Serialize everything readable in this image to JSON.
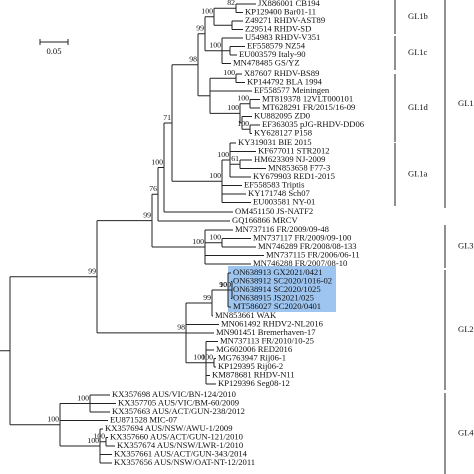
{
  "scale_bar": "0.05",
  "leaves": [
    "JX886001 CB194",
    "KP129400 Bar01-11",
    "Z49271 RHDV-AST89",
    "Z29514 RHDV-SD",
    "U54983 RHDV-V351",
    "EF558579 NZ54",
    "EU003579 Italy-90",
    "MN478485 GS/YZ",
    "X87607 RHDV-BS89",
    "KP144792 BLA 1994",
    "EF558577 Meiningen",
    "MT819378 12VLT000101",
    "MT628291 FR/2015/16-09",
    "KU882095 ZD0",
    "EF363035 pJG-RHDV-DD06",
    "KY628127 P158",
    "KY319031 BIE 2015",
    "KF677011 STR2012",
    "HM623309 NJ-2009",
    "MN853658 F77-3",
    "KY679903 RED1-2015",
    "EF558583 Triptis",
    "KY171748 Sch07",
    "EU003581 NY-01",
    "OM451150 JS-NATF2",
    "GQ166866 MRCV",
    "MN737116 FR/2009/09-48",
    "MN737117 FR/2009/09-100",
    "MN746289 FR/2008/08-133",
    "MN737115 FR/2006/06-11",
    "MN746288 FR/2007/08-10",
    "ON638913 GX2021/0421",
    "ON638912 SC2020/1016-02",
    "ON638914 SC2020/1025",
    "ON638915 JS2021/025",
    "MT586027 SC2020/0401",
    "MN853661 WAK",
    "MN061492 RHDV2-NL2016",
    "MN901451 Bremerhaven-17",
    "MN737113 FR/2010/10-25",
    "MG602006 RED2016",
    "MG763947 Rij06-1",
    "KP129395 Rij06-2",
    "KM878681 RHDV-N11",
    "KP129396 Seg08-12",
    "KX357698 AUS/VIC/BN-124/2010",
    "KX357705 AUS/VIC/BM-60/2009",
    "KX357663 AUS/ACT/GUN-238/2012",
    "EU871528 MIC-07",
    "KX357694 AUS/NSW/AWU-1/2009",
    "KX357660 AUS/ACT/GUN-121/2010",
    "KX357674 AUS/NSW/LWR-1/2010",
    "KX357661 AUS/ACT/GUN-343/2014",
    "KX357656 AUS/NSW/OAT-NT-12/2011"
  ],
  "clades": [
    "GI.1b",
    "GI.1c",
    "GI.1d",
    "GI.1a",
    "GI.1",
    "GI.3",
    "GI.2",
    "GI.4"
  ],
  "support_values": [
    82,
    100,
    100,
    99,
    100,
    100,
    100,
    100,
    98,
    100,
    100,
    61,
    71,
    100,
    76,
    100,
    100,
    99,
    90,
    100,
    99,
    100,
    100,
    98,
    99,
    100,
    100,
    100,
    100
  ]
}
